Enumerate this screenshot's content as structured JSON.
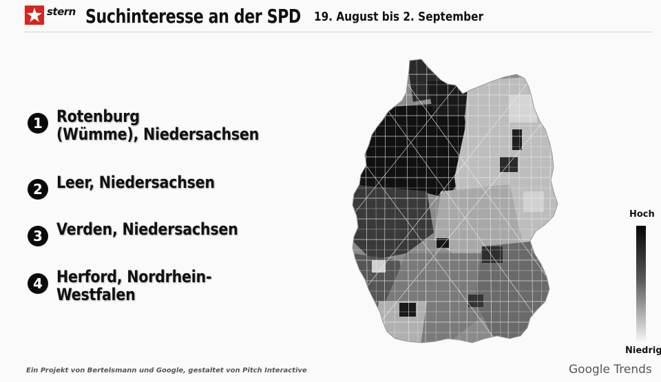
{
  "header": {
    "logo_text": "stern",
    "title": "Suchinteresse an der SPD",
    "subtitle": "19. August bis 2. September"
  },
  "ranking": [
    {
      "number": "1",
      "label": "Rotenburg\n(Wümme), Niedersachsen"
    },
    {
      "number": "2",
      "label": "Leer, Niedersachsen"
    },
    {
      "number": "3",
      "label": "Verden, Niedersachsen"
    },
    {
      "number": "4",
      "label": "Herford, Nordrhein-Westfalen"
    }
  ],
  "legend": {
    "high": "Hoch",
    "low": "Niedrig"
  },
  "footer": {
    "note": "Ein Projekt von Bertelsmann und Google, gestaltet von Pitch Interactive",
    "brand": "Google Trends"
  },
  "map": {
    "region": "Germany",
    "shading": "grayscale search interest by district",
    "colors": {
      "high": "#050505",
      "low": "#f5f5f5"
    }
  }
}
